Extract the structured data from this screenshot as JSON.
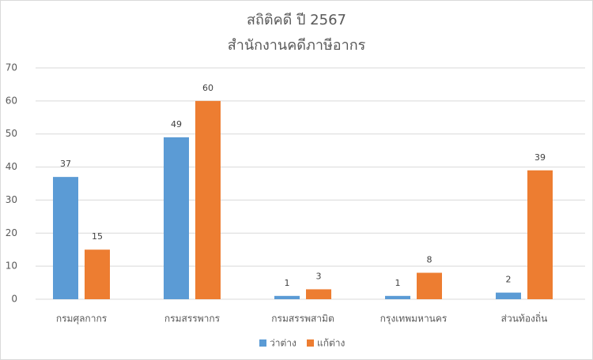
{
  "chart_data": {
    "type": "bar",
    "title": "สถิติคดี ปี 2567",
    "subtitle": "สำนักงานคดีภาษีอากร",
    "categories": [
      "กรมศุลกากร",
      "กรมสรรพากร",
      "กรมสรรพสามิต",
      "กรุงเทพมหานคร",
      "ส่วนท้องถิ่น"
    ],
    "series": [
      {
        "name": "ว่าต่าง",
        "color": "#5b9bd5",
        "values": [
          37,
          49,
          1,
          1,
          2
        ]
      },
      {
        "name": "แก้ต่าง",
        "color": "#ed7d31",
        "values": [
          15,
          60,
          3,
          8,
          39
        ]
      }
    ],
    "ylim": [
      0,
      70
    ],
    "yticks": [
      0,
      10,
      20,
      30,
      40,
      50,
      60,
      70
    ],
    "grid": true,
    "legend": "bottom"
  }
}
